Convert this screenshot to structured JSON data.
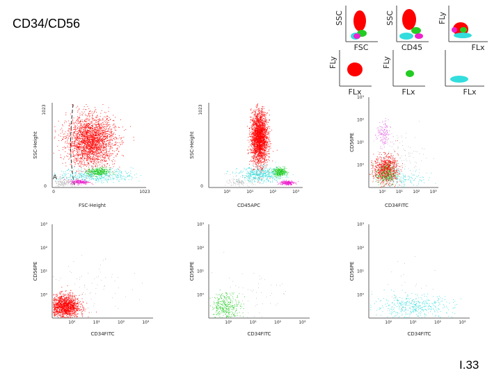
{
  "title": "CD34/CD56",
  "page_number": "I.33",
  "colors": {
    "red": "#ff0000",
    "green": "#22cc22",
    "cyan": "#33dddd",
    "magenta": "#ee22cc",
    "pink": "#e060e0",
    "gray": "#999999"
  },
  "legend_panels": [
    {
      "ylabel": "SSC",
      "xlabel": "FSC"
    },
    {
      "ylabel": "SSC",
      "xlabel": "CD45"
    },
    {
      "ylabel": "FLy",
      "xlabel": "FLx"
    },
    {
      "ylabel": "FLy",
      "xlabel": "FLx"
    },
    {
      "ylabel": "FLy",
      "xlabel": "FLx"
    },
    {
      "ylabel": "",
      "xlabel": "FLx"
    }
  ],
  "chart_data": [
    {
      "type": "scatter",
      "xlabel": "FSC-Height",
      "ylabel": "SSC-Height",
      "x_ticks": [
        "0",
        "1023"
      ],
      "y_ticks": [
        "0",
        "1023"
      ],
      "gate_label": "A",
      "xlim": [
        0,
        1023
      ],
      "ylim": [
        0,
        1023
      ],
      "populations": [
        {
          "color": "red",
          "center": [
            420,
            560
          ],
          "spread": [
            130,
            150
          ],
          "count": 2600
        },
        {
          "color": "cyan",
          "center": [
            470,
            150
          ],
          "spread": [
            200,
            40
          ],
          "count": 450
        },
        {
          "color": "green",
          "center": [
            500,
            190
          ],
          "spread": [
            60,
            25
          ],
          "count": 300
        },
        {
          "color": "magenta",
          "center": [
            300,
            70
          ],
          "spread": [
            50,
            14
          ],
          "count": 200
        },
        {
          "color": "gray",
          "center": [
            120,
            60
          ],
          "spread": [
            60,
            40
          ],
          "count": 180
        }
      ]
    },
    {
      "type": "scatter",
      "xlabel": "CD45APC",
      "ylabel": "SSC-Height",
      "x_ticks": [
        "10⁰",
        "10¹",
        "10²",
        "10³"
      ],
      "y_ticks": [
        "0",
        "1023"
      ],
      "xscale": "log",
      "populations": [
        {
          "color": "red",
          "center": [
            1.4,
            600
          ],
          "spread": [
            0.18,
            160
          ],
          "count": 2600
        },
        {
          "color": "cyan",
          "center": [
            1.5,
            160
          ],
          "spread": [
            0.5,
            45
          ],
          "count": 500
        },
        {
          "color": "green",
          "center": [
            2.3,
            190
          ],
          "spread": [
            0.15,
            25
          ],
          "count": 300
        },
        {
          "color": "magenta",
          "center": [
            2.6,
            60
          ],
          "spread": [
            0.15,
            14
          ],
          "count": 200
        },
        {
          "color": "gray",
          "center": [
            0.6,
            70
          ],
          "spread": [
            0.3,
            30
          ],
          "count": 120
        }
      ]
    },
    {
      "type": "scatter",
      "xlabel": "CD34FITC",
      "ylabel": "CD56PE",
      "x_ticks": [
        "10⁰",
        "10¹",
        "10²",
        "10³"
      ],
      "y_ticks": [
        "10⁰",
        "10¹",
        "10²",
        "10³"
      ],
      "xscale": "log",
      "yscale": "log",
      "populations": [
        {
          "color": "red",
          "center": [
            0.2,
            -0.2
          ],
          "spread": [
            0.35,
            0.3
          ],
          "count": 900
        },
        {
          "color": "pink",
          "center": [
            0.05,
            1.35
          ],
          "spread": [
            0.2,
            0.3
          ],
          "count": 140
        },
        {
          "color": "green",
          "center": [
            0.2,
            -0.4
          ],
          "spread": [
            0.3,
            0.25
          ],
          "count": 220
        },
        {
          "color": "cyan",
          "center": [
            1.2,
            -0.6
          ],
          "spread": [
            0.7,
            0.25
          ],
          "count": 160
        },
        {
          "color": "gray",
          "center": [
            0.9,
            0.3
          ],
          "spread": [
            0.8,
            0.6
          ],
          "count": 140
        }
      ]
    },
    {
      "type": "scatter",
      "xlabel": "CD34FITC",
      "ylabel": "CD56PE",
      "x_ticks": [
        "10⁰",
        "10¹",
        "10²",
        "10³"
      ],
      "y_ticks": [
        "10⁰",
        "10¹",
        "10²",
        "10³"
      ],
      "xscale": "log",
      "yscale": "log",
      "populations": [
        {
          "color": "red",
          "center": [
            -0.3,
            -0.5
          ],
          "spread": [
            0.3,
            0.25
          ],
          "count": 1500
        },
        {
          "color": "gray",
          "center": [
            0.8,
            0.2
          ],
          "spread": [
            0.8,
            0.6
          ],
          "count": 80
        }
      ]
    },
    {
      "type": "scatter",
      "xlabel": "CD34FITC",
      "ylabel": "CD56PE",
      "x_ticks": [
        "10⁰",
        "10¹",
        "10²",
        "10³"
      ],
      "y_ticks": [
        "10⁰",
        "10¹",
        "10²",
        "10³"
      ],
      "xscale": "log",
      "yscale": "log",
      "populations": [
        {
          "color": "green",
          "center": [
            -0.1,
            -0.5
          ],
          "spread": [
            0.3,
            0.3
          ],
          "count": 350
        },
        {
          "color": "gray",
          "center": [
            0.8,
            0.0
          ],
          "spread": [
            0.8,
            0.6
          ],
          "count": 60
        }
      ]
    },
    {
      "type": "scatter",
      "xlabel": "CD34FITC",
      "ylabel": "CD56PE",
      "x_ticks": [
        "10⁰",
        "10¹",
        "10²",
        "10³"
      ],
      "y_ticks": [
        "10⁰",
        "10¹",
        "10²",
        "10³"
      ],
      "xscale": "log",
      "yscale": "log",
      "populations": [
        {
          "color": "cyan",
          "center": [
            1.0,
            -0.5
          ],
          "spread": [
            0.8,
            0.25
          ],
          "count": 420
        },
        {
          "color": "gray",
          "center": [
            0.8,
            0.0
          ],
          "spread": [
            0.8,
            0.6
          ],
          "count": 40
        }
      ]
    }
  ]
}
